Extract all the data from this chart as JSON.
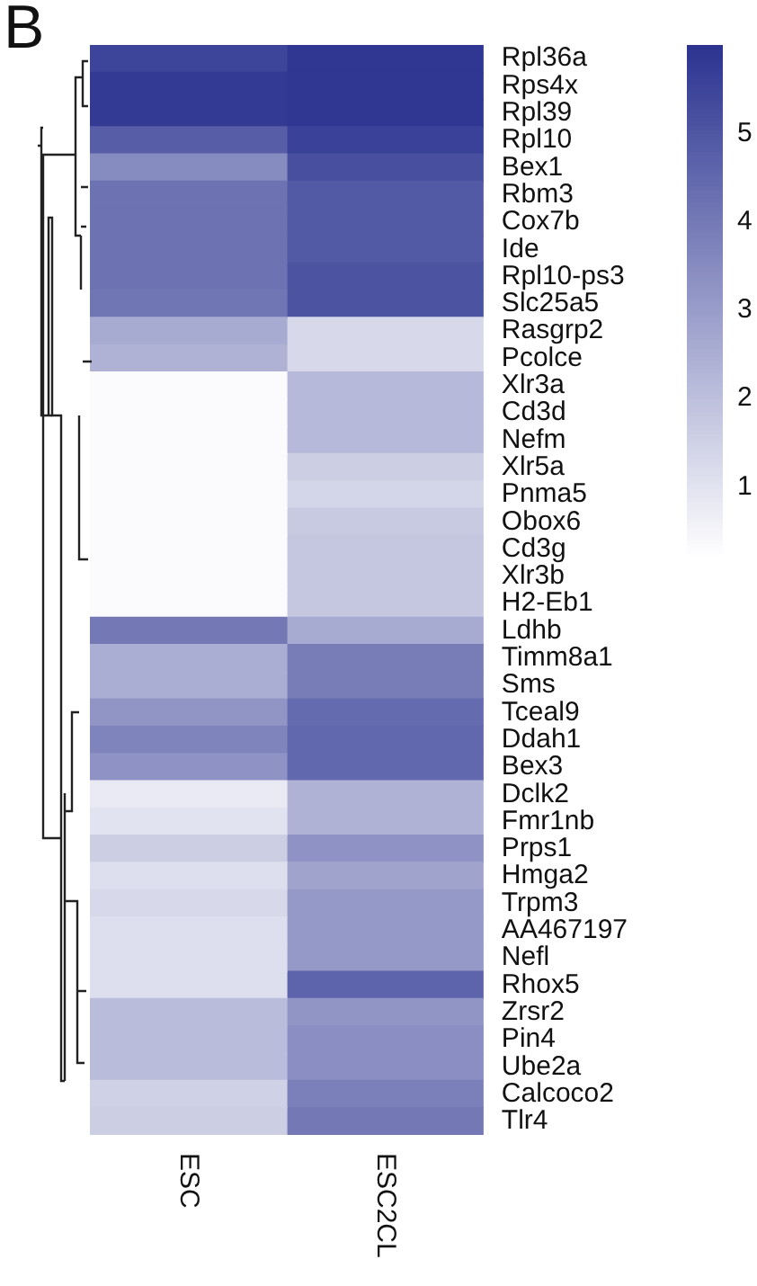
{
  "chart_data": {
    "type": "heatmap",
    "title": "B",
    "categories": [
      "ESC",
      "ESC2CL"
    ],
    "y_categories": [
      "Rpl36a",
      "Rps4x",
      "Rpl39",
      "Rpl10",
      "Bex1",
      "Rbm3",
      "Cox7b",
      "Ide",
      "Rpl10-ps3",
      "Slc25a5",
      "Rasgrp2",
      "Pcolce",
      "Xlr3a",
      "Cd3d",
      "Nefm",
      "Xlr5a",
      "Pnma5",
      "Obox6",
      "Cd3g",
      "Xlr3b",
      "H2-Eb1",
      "Ldhb",
      "Timm8a1",
      "Sms",
      "Tceal9",
      "Ddah1",
      "Bex3",
      "Dclk2",
      "Fmr1nb",
      "Prps1",
      "Hmga2",
      "Trpm3",
      "AA467197",
      "Nefl",
      "Rhox5",
      "Zrsr2",
      "Pin4",
      "Ube2a",
      "Calcoco2",
      "Tlr4"
    ],
    "cells": [
      [
        5.5,
        5.9
      ],
      [
        5.8,
        5.9
      ],
      [
        5.8,
        5.9
      ],
      [
        4.8,
        5.6
      ],
      [
        3.5,
        5.2
      ],
      [
        4.2,
        4.9
      ],
      [
        4.2,
        4.9
      ],
      [
        4.2,
        4.9
      ],
      [
        4.2,
        5.1
      ],
      [
        4.1,
        5.1
      ],
      [
        2.6,
        1.3
      ],
      [
        2.4,
        1.3
      ],
      [
        0.3,
        2.2
      ],
      [
        0.3,
        2.2
      ],
      [
        0.3,
        2.2
      ],
      [
        0.3,
        1.6
      ],
      [
        0.3,
        1.4
      ],
      [
        0.3,
        1.7
      ],
      [
        0.3,
        1.8
      ],
      [
        0.3,
        1.8
      ],
      [
        0.3,
        1.8
      ],
      [
        4.0,
        2.6
      ],
      [
        2.5,
        3.9
      ],
      [
        2.5,
        3.9
      ],
      [
        3.2,
        4.4
      ],
      [
        3.7,
        4.5
      ],
      [
        3.3,
        4.5
      ],
      [
        0.8,
        2.4
      ],
      [
        1.0,
        2.4
      ],
      [
        1.6,
        3.3
      ],
      [
        1.1,
        2.8
      ],
      [
        1.3,
        3.1
      ],
      [
        1.1,
        3.1
      ],
      [
        1.1,
        3.1
      ],
      [
        1.1,
        4.6
      ],
      [
        2.1,
        3.2
      ],
      [
        2.1,
        3.4
      ],
      [
        2.1,
        3.4
      ],
      [
        1.5,
        3.8
      ],
      [
        1.6,
        4.0
      ]
    ],
    "colors": [
      "#ffffff",
      "#2b3390"
    ],
    "clim": [
      0.2,
      6.0
    ],
    "cticks": [
      1,
      2,
      3,
      4,
      5
    ]
  }
}
